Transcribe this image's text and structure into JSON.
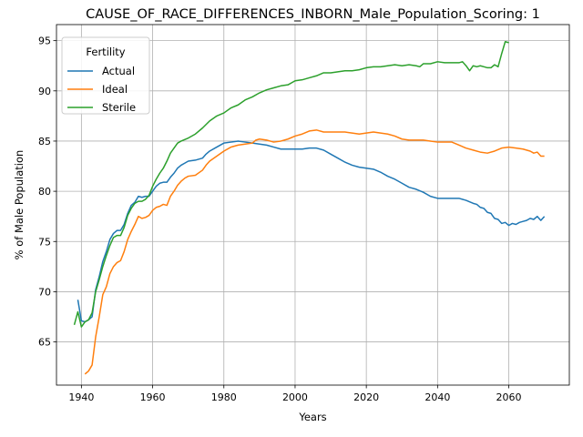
{
  "chart_data": {
    "type": "line",
    "title": "CAUSE_OF_RACE_DIFFERENCES_INBORN_Male_Population_Scoring: 1",
    "xlabel": "Years",
    "ylabel": "% of Male Population",
    "xlim": [
      1933,
      2077
    ],
    "ylim": [
      60.7,
      96.6
    ],
    "xticks": [
      1940,
      1960,
      1980,
      2000,
      2020,
      2040,
      2060
    ],
    "yticks": [
      65,
      70,
      75,
      80,
      85,
      90,
      95
    ],
    "grid": true,
    "legend": {
      "title": "Fertility",
      "position": "upper left"
    },
    "series": [
      {
        "name": "Actual",
        "color": "#1f77b4",
        "points": [
          [
            1939,
            69.2
          ],
          [
            1940,
            67.1
          ],
          [
            1941,
            67.0
          ],
          [
            1942,
            67.2
          ],
          [
            1943,
            67.5
          ],
          [
            1944,
            70.2
          ],
          [
            1945,
            71.5
          ],
          [
            1946,
            73.0
          ],
          [
            1947,
            74.0
          ],
          [
            1948,
            75.2
          ],
          [
            1949,
            75.8
          ],
          [
            1950,
            76.1
          ],
          [
            1951,
            76.1
          ],
          [
            1952,
            76.7
          ],
          [
            1953,
            77.8
          ],
          [
            1954,
            78.6
          ],
          [
            1955,
            78.9
          ],
          [
            1956,
            79.5
          ],
          [
            1957,
            79.4
          ],
          [
            1958,
            79.5
          ],
          [
            1959,
            79.5
          ],
          [
            1960,
            80.0
          ],
          [
            1961,
            80.5
          ],
          [
            1962,
            80.8
          ],
          [
            1963,
            80.9
          ],
          [
            1964,
            80.9
          ],
          [
            1965,
            81.4
          ],
          [
            1966,
            81.8
          ],
          [
            1967,
            82.3
          ],
          [
            1968,
            82.6
          ],
          [
            1969,
            82.8
          ],
          [
            1970,
            83.0
          ],
          [
            1972,
            83.1
          ],
          [
            1974,
            83.3
          ],
          [
            1975,
            83.7
          ],
          [
            1976,
            84.0
          ],
          [
            1978,
            84.4
          ],
          [
            1980,
            84.8
          ],
          [
            1982,
            84.9
          ],
          [
            1984,
            85.0
          ],
          [
            1986,
            84.9
          ],
          [
            1988,
            84.8
          ],
          [
            1990,
            84.7
          ],
          [
            1992,
            84.6
          ],
          [
            1994,
            84.4
          ],
          [
            1996,
            84.2
          ],
          [
            1998,
            84.2
          ],
          [
            2000,
            84.2
          ],
          [
            2002,
            84.2
          ],
          [
            2004,
            84.3
          ],
          [
            2006,
            84.3
          ],
          [
            2008,
            84.1
          ],
          [
            2010,
            83.7
          ],
          [
            2012,
            83.3
          ],
          [
            2014,
            82.9
          ],
          [
            2016,
            82.6
          ],
          [
            2018,
            82.4
          ],
          [
            2020,
            82.3
          ],
          [
            2022,
            82.2
          ],
          [
            2024,
            81.9
          ],
          [
            2026,
            81.5
          ],
          [
            2028,
            81.2
          ],
          [
            2030,
            80.8
          ],
          [
            2032,
            80.4
          ],
          [
            2034,
            80.2
          ],
          [
            2036,
            79.9
          ],
          [
            2038,
            79.5
          ],
          [
            2040,
            79.3
          ],
          [
            2042,
            79.3
          ],
          [
            2044,
            79.3
          ],
          [
            2046,
            79.3
          ],
          [
            2048,
            79.1
          ],
          [
            2050,
            78.8
          ],
          [
            2051,
            78.7
          ],
          [
            2052,
            78.4
          ],
          [
            2053,
            78.3
          ],
          [
            2054,
            77.9
          ],
          [
            2055,
            77.8
          ],
          [
            2056,
            77.3
          ],
          [
            2057,
            77.2
          ],
          [
            2058,
            76.8
          ],
          [
            2059,
            76.9
          ],
          [
            2060,
            76.6
          ],
          [
            2061,
            76.8
          ],
          [
            2062,
            76.7
          ],
          [
            2063,
            76.9
          ],
          [
            2064,
            77.0
          ],
          [
            2065,
            77.1
          ],
          [
            2066,
            77.3
          ],
          [
            2067,
            77.2
          ],
          [
            2068,
            77.5
          ],
          [
            2069,
            77.1
          ],
          [
            2070,
            77.5
          ]
        ]
      },
      {
        "name": "Ideal",
        "color": "#ff7f0e",
        "points": [
          [
            1941,
            61.8
          ],
          [
            1942,
            62.1
          ],
          [
            1943,
            62.7
          ],
          [
            1944,
            65.5
          ],
          [
            1945,
            67.5
          ],
          [
            1946,
            69.7
          ],
          [
            1947,
            70.5
          ],
          [
            1948,
            71.8
          ],
          [
            1949,
            72.5
          ],
          [
            1950,
            72.9
          ],
          [
            1951,
            73.1
          ],
          [
            1952,
            74.0
          ],
          [
            1953,
            75.2
          ],
          [
            1954,
            76.0
          ],
          [
            1955,
            76.7
          ],
          [
            1956,
            77.5
          ],
          [
            1957,
            77.3
          ],
          [
            1958,
            77.4
          ],
          [
            1959,
            77.6
          ],
          [
            1960,
            78.1
          ],
          [
            1961,
            78.4
          ],
          [
            1962,
            78.5
          ],
          [
            1963,
            78.7
          ],
          [
            1964,
            78.6
          ],
          [
            1965,
            79.5
          ],
          [
            1966,
            80.0
          ],
          [
            1967,
            80.6
          ],
          [
            1968,
            81.0
          ],
          [
            1969,
            81.3
          ],
          [
            1970,
            81.5
          ],
          [
            1972,
            81.6
          ],
          [
            1974,
            82.1
          ],
          [
            1975,
            82.6
          ],
          [
            1976,
            83.0
          ],
          [
            1978,
            83.5
          ],
          [
            1980,
            84.0
          ],
          [
            1982,
            84.4
          ],
          [
            1984,
            84.6
          ],
          [
            1986,
            84.7
          ],
          [
            1988,
            84.8
          ],
          [
            1989,
            85.1
          ],
          [
            1990,
            85.2
          ],
          [
            1992,
            85.1
          ],
          [
            1994,
            84.9
          ],
          [
            1996,
            85.0
          ],
          [
            1998,
            85.2
          ],
          [
            2000,
            85.5
          ],
          [
            2002,
            85.7
          ],
          [
            2004,
            86.0
          ],
          [
            2006,
            86.1
          ],
          [
            2008,
            85.9
          ],
          [
            2010,
            85.9
          ],
          [
            2012,
            85.9
          ],
          [
            2014,
            85.9
          ],
          [
            2016,
            85.8
          ],
          [
            2018,
            85.7
          ],
          [
            2020,
            85.8
          ],
          [
            2022,
            85.9
          ],
          [
            2024,
            85.8
          ],
          [
            2026,
            85.7
          ],
          [
            2028,
            85.5
          ],
          [
            2030,
            85.2
          ],
          [
            2032,
            85.1
          ],
          [
            2034,
            85.1
          ],
          [
            2036,
            85.1
          ],
          [
            2038,
            85.0
          ],
          [
            2040,
            84.9
          ],
          [
            2042,
            84.9
          ],
          [
            2044,
            84.9
          ],
          [
            2046,
            84.6
          ],
          [
            2048,
            84.3
          ],
          [
            2050,
            84.1
          ],
          [
            2052,
            83.9
          ],
          [
            2054,
            83.8
          ],
          [
            2056,
            84.0
          ],
          [
            2058,
            84.3
          ],
          [
            2060,
            84.4
          ],
          [
            2062,
            84.3
          ],
          [
            2064,
            84.2
          ],
          [
            2066,
            84.0
          ],
          [
            2067,
            83.8
          ],
          [
            2068,
            83.9
          ],
          [
            2069,
            83.5
          ],
          [
            2070,
            83.5
          ]
        ]
      },
      {
        "name": "Sterile",
        "color": "#2ca02c",
        "points": [
          [
            1938,
            66.7
          ],
          [
            1939,
            68.0
          ],
          [
            1940,
            66.5
          ],
          [
            1941,
            67.0
          ],
          [
            1942,
            67.2
          ],
          [
            1943,
            67.9
          ],
          [
            1944,
            70.0
          ],
          [
            1945,
            71.2
          ],
          [
            1946,
            72.5
          ],
          [
            1947,
            73.6
          ],
          [
            1948,
            74.6
          ],
          [
            1949,
            75.4
          ],
          [
            1950,
            75.6
          ],
          [
            1951,
            75.6
          ],
          [
            1952,
            76.4
          ],
          [
            1953,
            77.6
          ],
          [
            1954,
            78.3
          ],
          [
            1955,
            78.8
          ],
          [
            1956,
            79.0
          ],
          [
            1957,
            79.0
          ],
          [
            1958,
            79.2
          ],
          [
            1959,
            79.6
          ],
          [
            1960,
            80.5
          ],
          [
            1961,
            81.2
          ],
          [
            1962,
            81.8
          ],
          [
            1963,
            82.3
          ],
          [
            1964,
            83.0
          ],
          [
            1965,
            83.8
          ],
          [
            1966,
            84.3
          ],
          [
            1967,
            84.8
          ],
          [
            1968,
            85.0
          ],
          [
            1970,
            85.3
          ],
          [
            1972,
            85.7
          ],
          [
            1974,
            86.3
          ],
          [
            1976,
            87.0
          ],
          [
            1978,
            87.5
          ],
          [
            1980,
            87.8
          ],
          [
            1982,
            88.3
          ],
          [
            1984,
            88.6
          ],
          [
            1986,
            89.1
          ],
          [
            1988,
            89.4
          ],
          [
            1990,
            89.8
          ],
          [
            1992,
            90.1
          ],
          [
            1994,
            90.3
          ],
          [
            1996,
            90.5
          ],
          [
            1998,
            90.6
          ],
          [
            2000,
            91.0
          ],
          [
            2002,
            91.1
          ],
          [
            2004,
            91.3
          ],
          [
            2006,
            91.5
          ],
          [
            2008,
            91.8
          ],
          [
            2010,
            91.8
          ],
          [
            2012,
            91.9
          ],
          [
            2014,
            92.0
          ],
          [
            2016,
            92.0
          ],
          [
            2018,
            92.1
          ],
          [
            2020,
            92.3
          ],
          [
            2022,
            92.4
          ],
          [
            2024,
            92.4
          ],
          [
            2026,
            92.5
          ],
          [
            2028,
            92.6
          ],
          [
            2030,
            92.5
          ],
          [
            2032,
            92.6
          ],
          [
            2034,
            92.5
          ],
          [
            2035,
            92.4
          ],
          [
            2036,
            92.7
          ],
          [
            2038,
            92.7
          ],
          [
            2040,
            92.9
          ],
          [
            2042,
            92.8
          ],
          [
            2044,
            92.8
          ],
          [
            2046,
            92.8
          ],
          [
            2047,
            92.9
          ],
          [
            2048,
            92.5
          ],
          [
            2049,
            92.0
          ],
          [
            2050,
            92.5
          ],
          [
            2051,
            92.4
          ],
          [
            2052,
            92.5
          ],
          [
            2053,
            92.4
          ],
          [
            2054,
            92.3
          ],
          [
            2055,
            92.3
          ],
          [
            2056,
            92.6
          ],
          [
            2057,
            92.4
          ],
          [
            2058,
            93.7
          ],
          [
            2059,
            94.9
          ],
          [
            2060,
            94.8
          ]
        ]
      }
    ]
  }
}
